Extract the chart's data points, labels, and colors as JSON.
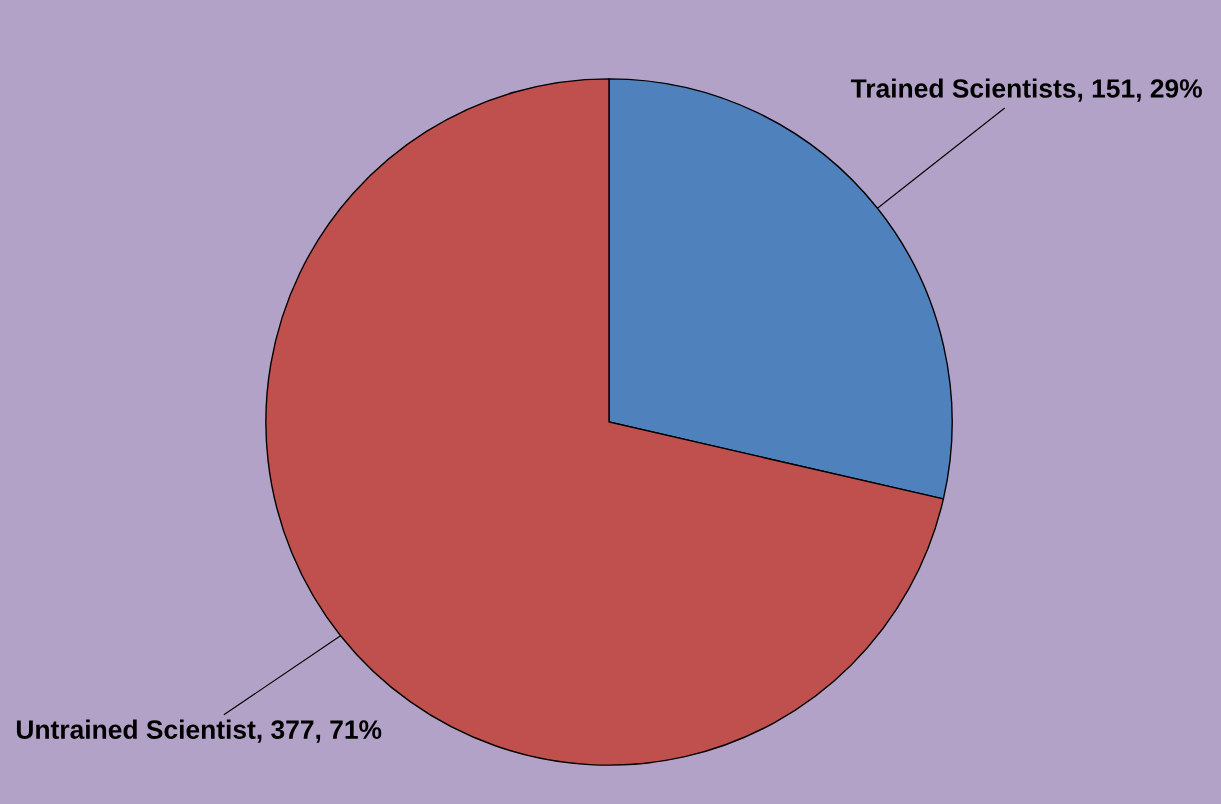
{
  "chart_data": {
    "type": "pie",
    "categories": [
      "Trained Scientists",
      "Untrained Scientist"
    ],
    "values": [
      151,
      377
    ],
    "value_labels": [
      "151, 29%",
      "377, 71%"
    ],
    "colors": [
      "#4f81bd",
      "#c0504d"
    ]
  }
}
